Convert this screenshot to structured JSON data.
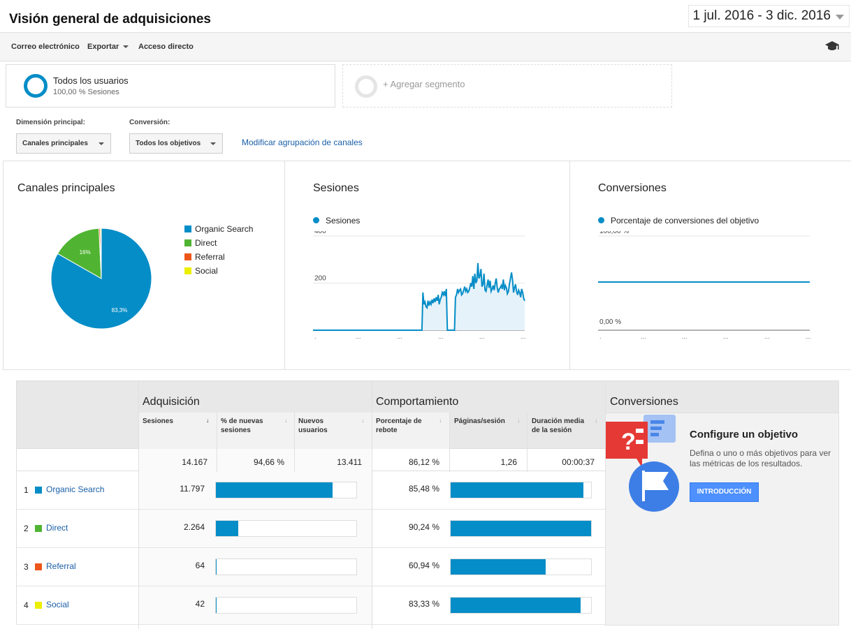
{
  "header": {
    "title": "Visión general de adquisiciones",
    "date_range": "1 jul. 2016 - 3 dic. 2016"
  },
  "toolbar": {
    "email_label": "Correo electrónico",
    "export_label": "Exportar",
    "shortcut_label": "Acceso directo"
  },
  "segments": {
    "primary_name": "Todos los usuarios",
    "primary_sub": "100,00 % Sesiones",
    "add_label": "+ Agregar segmento"
  },
  "controls": {
    "dimension_label": "Dimensión principal:",
    "dimension_value": "Canales principales",
    "conversion_label": "Conversión:",
    "conversion_value": "Todos los objetivos",
    "modify_link": "Modificar agrupación de canales"
  },
  "colors": {
    "accent": "#058dc7",
    "organic": "#058dc7",
    "direct": "#50b432",
    "referral": "#ed561b",
    "social": "#edef00",
    "link": "#1a5fa8",
    "button": "#4d90fe"
  },
  "chart_data": [
    {
      "type": "pie",
      "title": "Canales principales",
      "categories": [
        "Organic Search",
        "Direct",
        "Referral",
        "Social"
      ],
      "values": [
        83.3,
        16.0,
        0.45,
        0.3
      ],
      "labels": [
        "83,3%",
        "16%",
        "",
        ""
      ],
      "legend": "right"
    },
    {
      "type": "area",
      "title": "Sesiones",
      "series_name": "Sesiones",
      "ylim": [
        0,
        400
      ],
      "yticks": [
        {
          "value": 200,
          "label": "200"
        },
        {
          "value": 400,
          "label": "400"
        }
      ],
      "x_tick_labels": [
        ".",
        "...",
        "...",
        "...",
        "...",
        "..."
      ],
      "values": [
        0,
        0,
        0,
        0,
        0,
        0,
        0,
        0,
        0,
        0,
        0,
        0,
        0,
        0,
        0,
        0,
        0,
        0,
        0,
        0,
        0,
        0,
        0,
        0,
        0,
        0,
        0,
        0,
        0,
        0,
        0,
        0,
        0,
        0,
        0,
        0,
        0,
        0,
        0,
        0,
        0,
        0,
        0,
        0,
        0,
        0,
        0,
        0,
        0,
        0,
        0,
        0,
        0,
        0,
        0,
        0,
        0,
        0,
        0,
        0,
        0,
        0,
        0,
        0,
        0,
        0,
        0,
        0,
        0,
        0,
        0,
        0,
        0,
        0,
        0,
        0,
        0,
        0,
        0,
        0,
        0,
        0,
        0,
        0,
        0,
        0,
        0,
        0,
        0,
        0,
        0,
        0,
        0,
        0,
        0,
        0,
        0,
        0,
        0,
        0,
        0,
        0,
        0,
        0,
        0,
        0,
        0,
        0,
        160,
        110,
        120,
        100,
        95,
        125,
        105,
        120,
        110,
        130,
        115,
        135,
        120,
        140,
        125,
        150,
        110,
        130,
        140,
        160,
        150,
        165,
        145,
        175,
        0,
        0,
        0,
        0,
        0,
        0,
        0,
        0,
        140,
        150,
        175,
        160,
        170,
        175,
        150,
        155,
        170,
        185,
        165,
        175,
        160,
        165,
        180,
        200,
        185,
        230,
        175,
        240,
        200,
        210,
        285,
        220,
        230,
        260,
        185,
        195,
        240,
        170,
        165,
        190,
        215,
        180,
        210,
        165,
        175,
        190,
        170,
        200,
        220,
        180,
        160,
        175,
        180,
        190,
        175,
        215,
        170,
        190,
        180,
        155,
        165,
        195,
        220,
        245,
        215,
        160,
        180,
        195,
        165,
        150,
        170,
        160,
        140,
        175,
        160,
        135,
        125
      ],
      "legend": "top-left"
    },
    {
      "type": "line",
      "title": "Conversiones",
      "series_name": "Porcentaje de conversiones del objetivo",
      "ylim": [
        0,
        100
      ],
      "yticks": [
        {
          "value": 0,
          "label": "0,00 %"
        },
        {
          "value": 100,
          "label": "100,00 %"
        }
      ],
      "x_tick_labels": [
        ".",
        "...",
        "...",
        "...",
        "...",
        "..."
      ],
      "values": [
        0,
        0
      ],
      "legend": "top-left"
    }
  ],
  "table": {
    "groups": {
      "acquisition": "Adquisición",
      "behavior": "Comportamiento",
      "conversions": "Conversiones"
    },
    "columns": [
      {
        "label": "Sesiones",
        "sort": "↓"
      },
      {
        "label": "% de nuevas sesiones",
        "sort": "↓"
      },
      {
        "label": "Nuevos usuarios",
        "sort": "↓"
      },
      {
        "label": "Porcentaje de rebote",
        "sort": "↓"
      },
      {
        "label": "Páginas/sesión",
        "sort": "↓"
      },
      {
        "label": "Duración media de la sesión",
        "sort": "↓"
      }
    ],
    "totals": {
      "sessions": "14.167",
      "new_sessions_pct": "94,66 %",
      "new_users": "13.411",
      "bounce_rate": "86,12 %",
      "pages_per_session": "1,26",
      "avg_duration": "00:00:37"
    },
    "rows": [
      {
        "rank": "1",
        "name": "Organic Search",
        "color": "#058dc7",
        "sessions": "11.797",
        "sessions_share": 0.832,
        "bounce": "85,48 %",
        "bounce_share": 0.9474
      },
      {
        "rank": "2",
        "name": "Direct",
        "color": "#50b432",
        "sessions": "2.264",
        "sessions_share": 0.16,
        "bounce": "90,24 %",
        "bounce_share": 1.0
      },
      {
        "rank": "3",
        "name": "Referral",
        "color": "#ed561b",
        "sessions": "64",
        "sessions_share": 0.0045,
        "bounce": "60,94 %",
        "bounce_share": 0.6753
      },
      {
        "rank": "4",
        "name": "Social",
        "color": "#edef00",
        "sessions": "42",
        "sessions_share": 0.003,
        "bounce": "83,33 %",
        "bounce_share": 0.9235
      }
    ]
  },
  "goal_box": {
    "title": "Configure un objetivo",
    "description": "Defina o uno o más objetivos para ver las métricas de los resultados.",
    "button": "INTRODUCCIÓN"
  },
  "icons": [
    "graduation-cap-icon",
    "dropdown-caret-icon",
    "sort-arrow-icon",
    "goal-illustration-icon"
  ]
}
